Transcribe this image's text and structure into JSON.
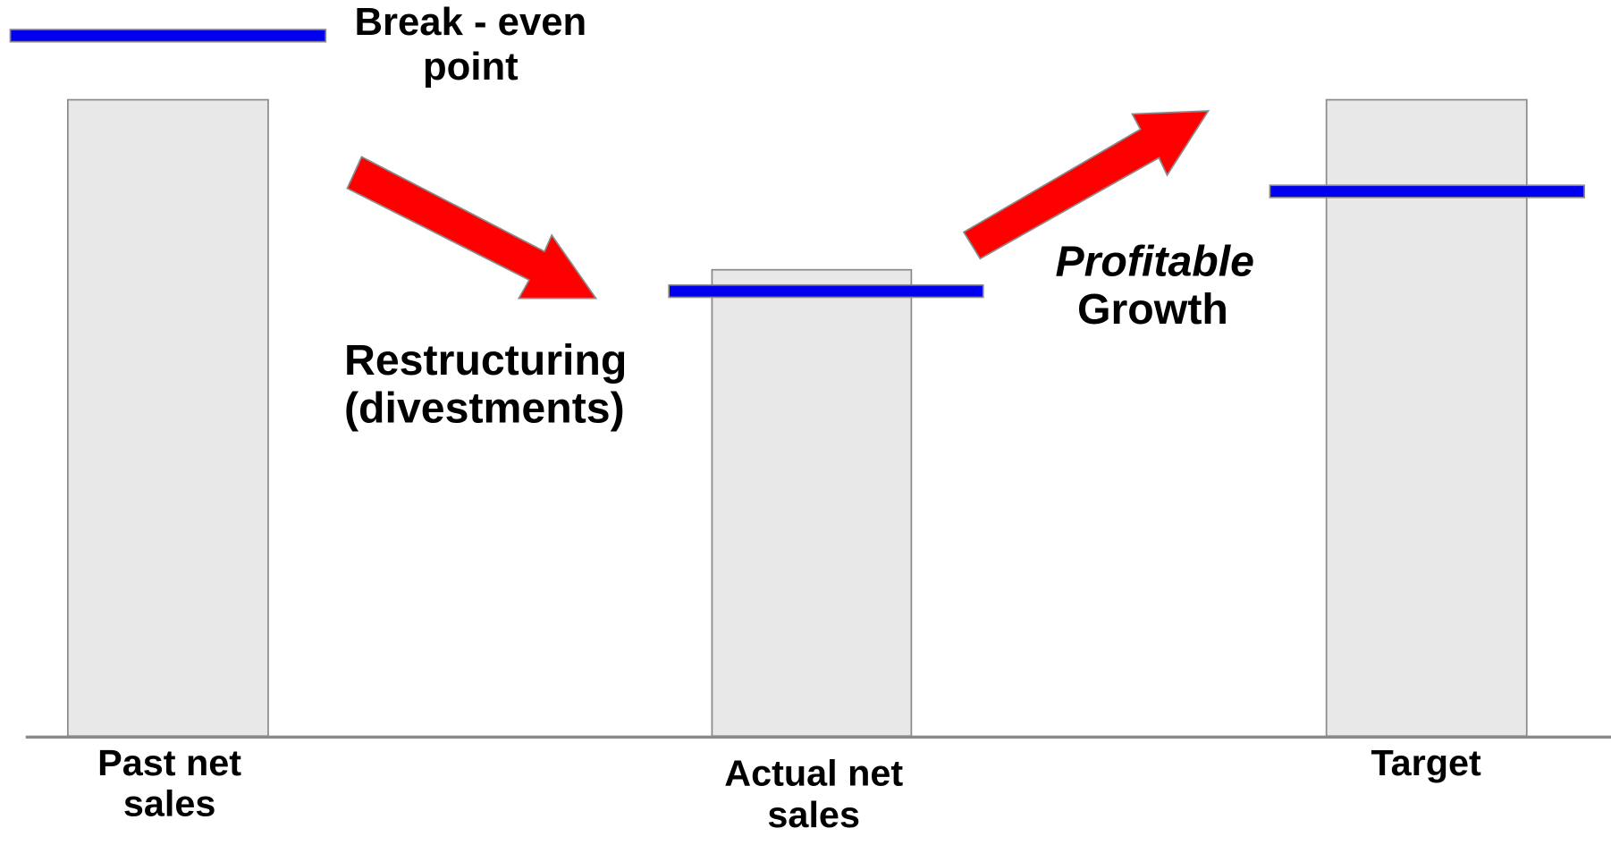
{
  "legend": {
    "line1": "Break - even",
    "line2": "point"
  },
  "annotations": {
    "restructuring": {
      "line1": "Restructuring",
      "line2": "(divestments)"
    },
    "growth": {
      "line1": "Profitable",
      "line2": "Growth"
    }
  },
  "categories": {
    "past": {
      "line1": "Past net",
      "line2": "sales"
    },
    "actual": {
      "line1": "Actual net",
      "line2": "sales"
    },
    "target": {
      "line1": "Target"
    }
  }
}
